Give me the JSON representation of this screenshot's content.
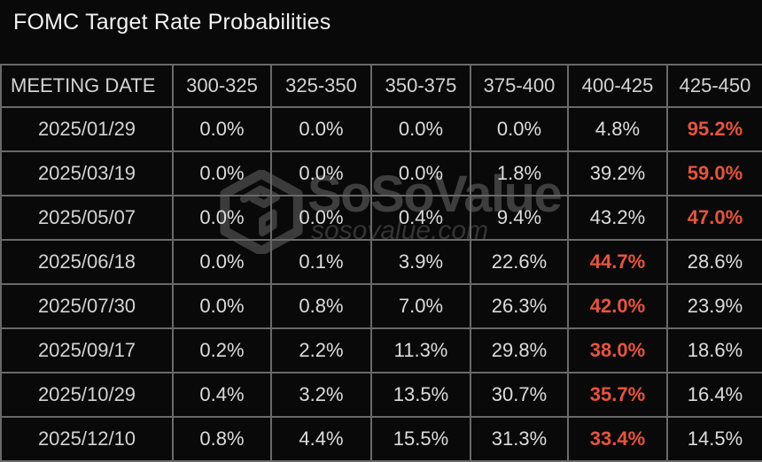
{
  "title": "FOMC Target Rate Probabilities",
  "watermark": {
    "brand": "SoSoValue",
    "url": "sosovalue.com",
    "logo_icon": "sosovalue-cube-logo"
  },
  "colors": {
    "background": "#090909",
    "border": "#696969",
    "text": "#dcdcdc",
    "accent_highlight": "#e8543c",
    "watermark_text": "#3e3e3e"
  },
  "chart_data": {
    "type": "table",
    "title": "FOMC Target Rate Probabilities",
    "columns": [
      "MEETING DATE",
      "300-325",
      "325-350",
      "350-375",
      "375-400",
      "400-425",
      "425-450"
    ],
    "rows": [
      {
        "date": "2025/01/29",
        "values": [
          "0.0%",
          "0.0%",
          "0.0%",
          "0.0%",
          "4.8%",
          "95.2%"
        ],
        "highlight_index": 5
      },
      {
        "date": "2025/03/19",
        "values": [
          "0.0%",
          "0.0%",
          "0.0%",
          "1.8%",
          "39.2%",
          "59.0%"
        ],
        "highlight_index": 5
      },
      {
        "date": "2025/05/07",
        "values": [
          "0.0%",
          "0.0%",
          "0.4%",
          "9.4%",
          "43.2%",
          "47.0%"
        ],
        "highlight_index": 5
      },
      {
        "date": "2025/06/18",
        "values": [
          "0.0%",
          "0.1%",
          "3.9%",
          "22.6%",
          "44.7%",
          "28.6%"
        ],
        "highlight_index": 4
      },
      {
        "date": "2025/07/30",
        "values": [
          "0.0%",
          "0.8%",
          "7.0%",
          "26.3%",
          "42.0%",
          "23.9%"
        ],
        "highlight_index": 4
      },
      {
        "date": "2025/09/17",
        "values": [
          "0.2%",
          "2.2%",
          "11.3%",
          "29.8%",
          "38.0%",
          "18.6%"
        ],
        "highlight_index": 4
      },
      {
        "date": "2025/10/29",
        "values": [
          "0.4%",
          "3.2%",
          "13.5%",
          "30.7%",
          "35.7%",
          "16.4%"
        ],
        "highlight_index": 4
      },
      {
        "date": "2025/12/10",
        "values": [
          "0.8%",
          "4.4%",
          "15.5%",
          "31.3%",
          "33.4%",
          "14.5%"
        ],
        "highlight_index": 4
      }
    ]
  }
}
